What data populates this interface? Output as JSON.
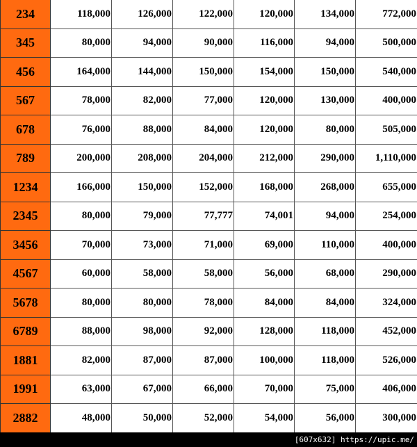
{
  "table": {
    "rows": [
      [
        "234",
        "118,000",
        "126,000",
        "122,000",
        "120,000",
        "134,000",
        "772,000"
      ],
      [
        "345",
        "80,000",
        "94,000",
        "90,000",
        "116,000",
        "94,000",
        "500,000"
      ],
      [
        "456",
        "164,000",
        "144,000",
        "150,000",
        "154,000",
        "150,000",
        "540,000"
      ],
      [
        "567",
        "78,000",
        "82,000",
        "77,000",
        "120,000",
        "130,000",
        "400,000"
      ],
      [
        "678",
        "76,000",
        "88,000",
        "84,000",
        "120,000",
        "80,000",
        "505,000"
      ],
      [
        "789",
        "200,000",
        "208,000",
        "204,000",
        "212,000",
        "290,000",
        "1,110,000"
      ],
      [
        "1234",
        "166,000",
        "150,000",
        "152,000",
        "168,000",
        "268,000",
        "655,000"
      ],
      [
        "2345",
        "80,000",
        "79,000",
        "77,777",
        "74,001",
        "94,000",
        "254,000"
      ],
      [
        "3456",
        "70,000",
        "73,000",
        "71,000",
        "69,000",
        "110,000",
        "400,000"
      ],
      [
        "4567",
        "60,000",
        "58,000",
        "58,000",
        "56,000",
        "68,000",
        "290,000"
      ],
      [
        "5678",
        "80,000",
        "80,000",
        "78,000",
        "84,000",
        "84,000",
        "324,000"
      ],
      [
        "6789",
        "88,000",
        "98,000",
        "92,000",
        "128,000",
        "118,000",
        "452,000"
      ],
      [
        "1881",
        "82,000",
        "87,000",
        "87,000",
        "100,000",
        "118,000",
        "526,000"
      ],
      [
        "1991",
        "63,000",
        "67,000",
        "66,000",
        "70,000",
        "75,000",
        "406,000"
      ],
      [
        "2882",
        "48,000",
        "50,000",
        "52,000",
        "54,000",
        "56,000",
        "300,000"
      ]
    ]
  },
  "footer": {
    "text": "[607x632] https://upic.me/"
  }
}
